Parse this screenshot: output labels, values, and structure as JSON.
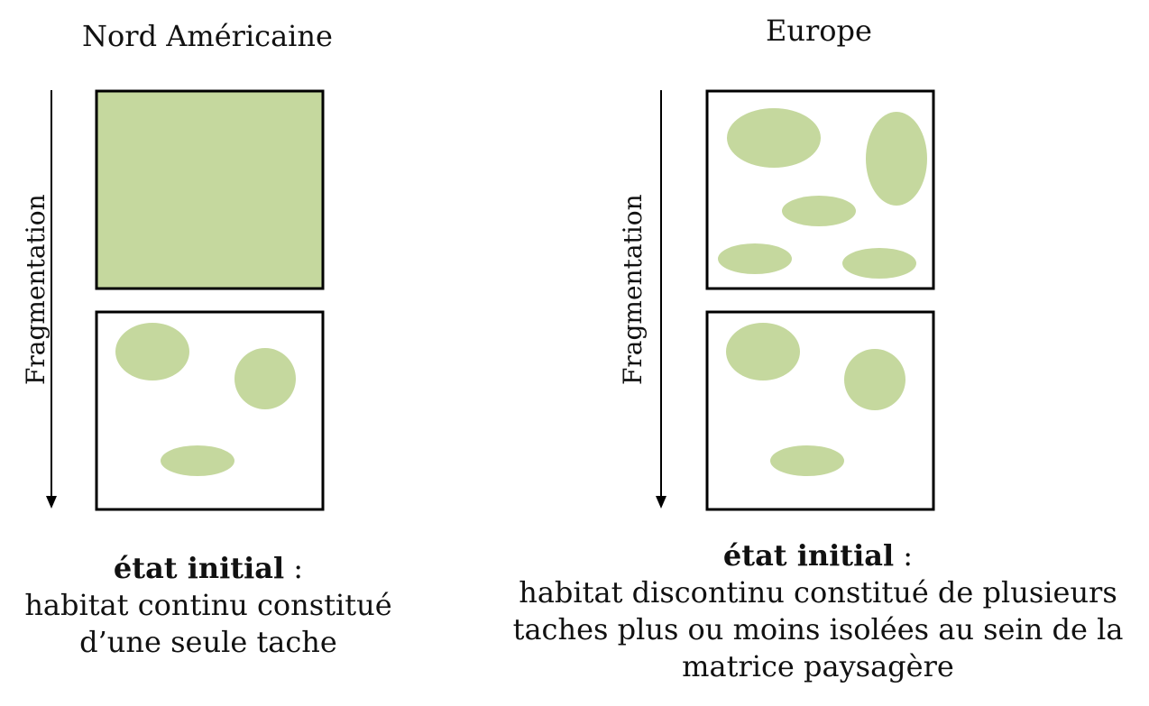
{
  "panels": [
    {
      "title": "Nord Américaine",
      "axis_label": "Fragmentation",
      "caption": {
        "heading": "état initial",
        "separator": " :",
        "lines": [
          "habitat continu constitué",
          "d’une seule tache"
        ]
      }
    },
    {
      "title": "Europe",
      "axis_label": "Fragmentation",
      "caption": {
        "heading": "état initial",
        "separator": " :",
        "lines": [
          "habitat discontinu constitué de plusieurs",
          "taches plus ou moins isolées au sein de la",
          "matrice paysagère"
        ]
      }
    }
  ],
  "colors": {
    "habitat": "#c5d89e",
    "border": "#000000",
    "text": "#111111"
  }
}
